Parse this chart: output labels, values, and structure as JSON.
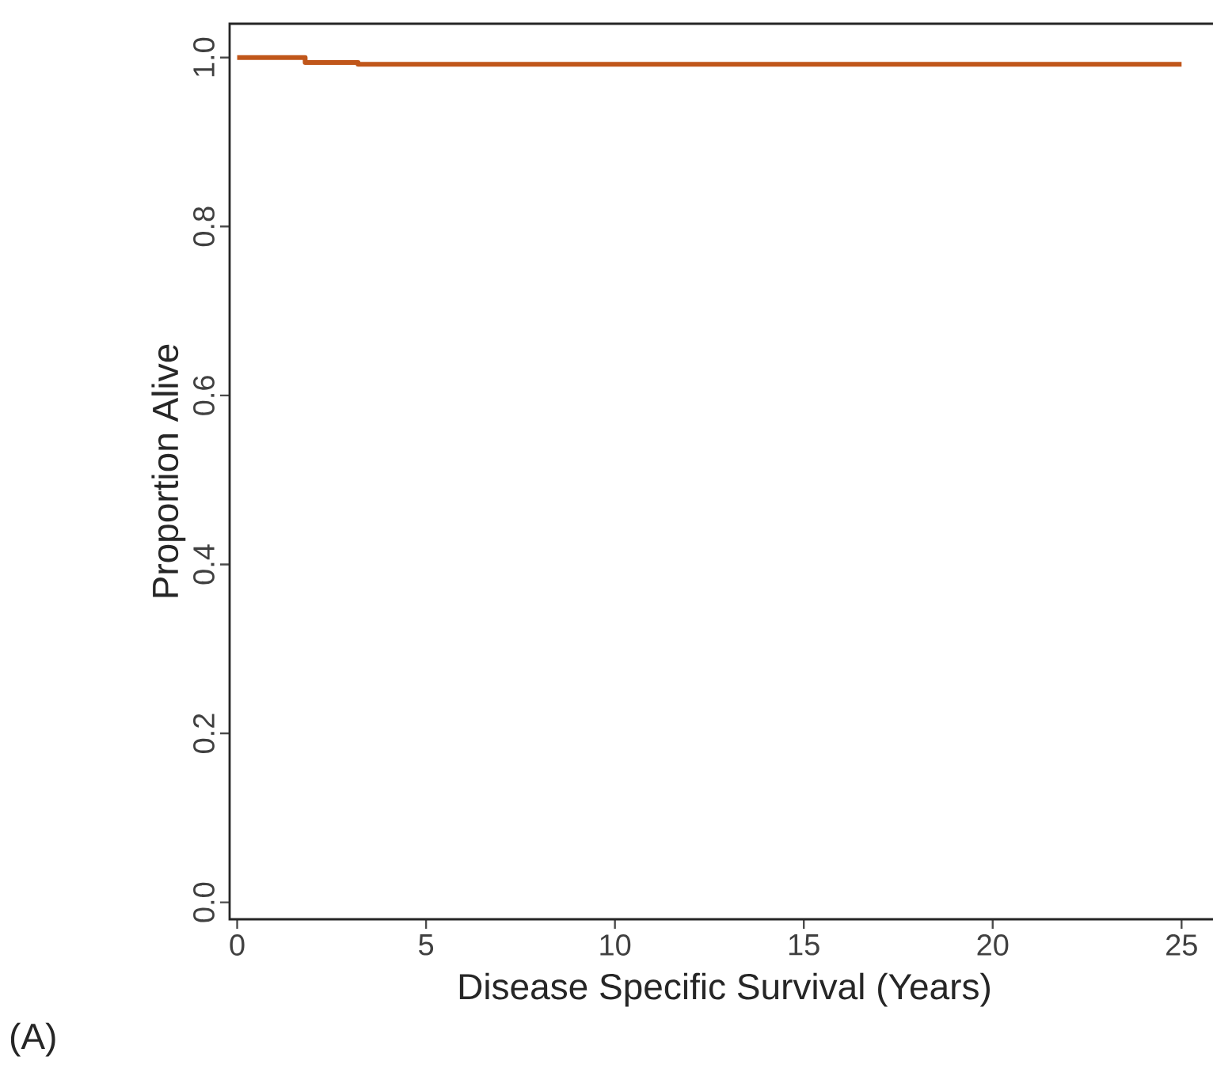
{
  "chart_data": {
    "type": "step",
    "xlabel": "Disease Specific Survival (Years)",
    "ylabel": "Proportion Alive",
    "annotations": [
      "(A)"
    ],
    "x": [
      0,
      1.8,
      3.2,
      25
    ],
    "series": [
      {
        "color": "#c0561a",
        "values": [
          1.0,
          0.994,
          0.992,
          0.992
        ]
      }
    ],
    "xlim": [
      -0.2,
      26
    ],
    "ylim": [
      -0.02,
      1.04
    ],
    "xticks": [
      0,
      5,
      10,
      15,
      20,
      25
    ],
    "yticks": [
      {
        "value": 0,
        "label": "0.0"
      },
      {
        "value": 0.2,
        "label": "0.2"
      },
      {
        "value": 0.4,
        "label": "0.4"
      },
      {
        "value": 0.6,
        "label": "0.6"
      },
      {
        "value": 0.8,
        "label": "0.8"
      },
      {
        "value": 1,
        "label": "1.0"
      }
    ],
    "grid": false,
    "marker": "none",
    "line_style": "solid"
  }
}
